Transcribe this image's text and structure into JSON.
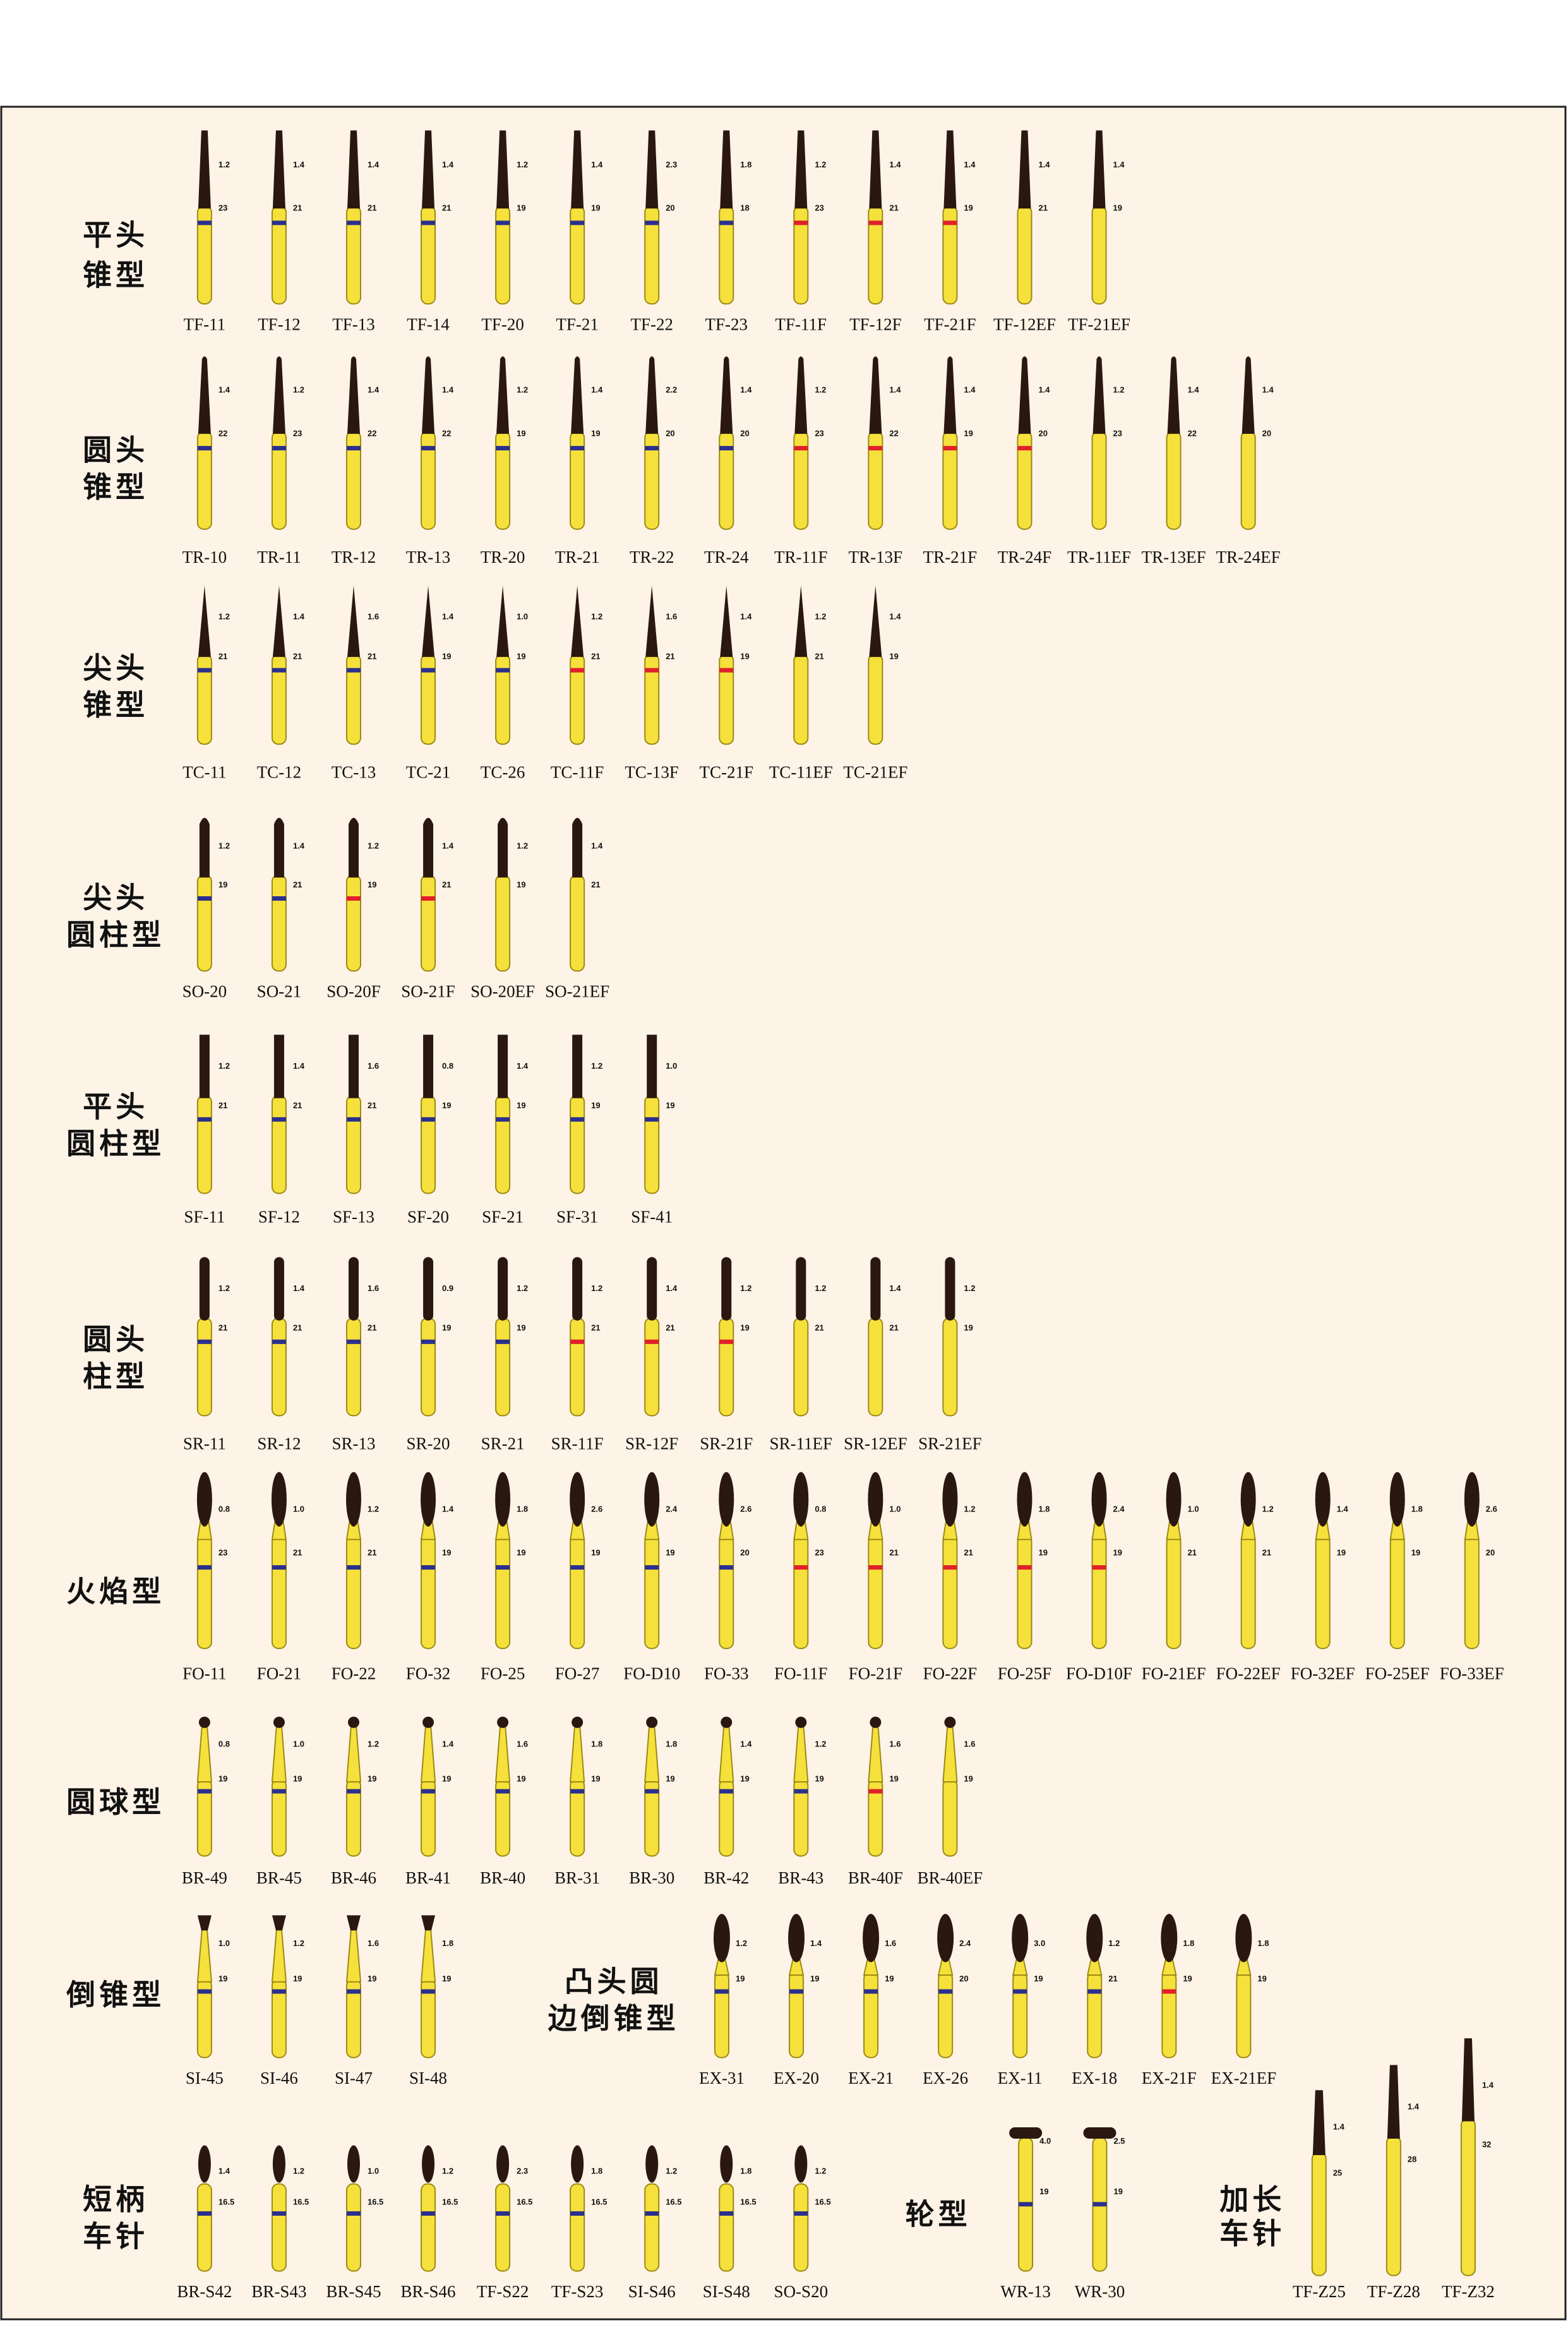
{
  "sections": [
    {
      "title": [
        "平头",
        "锥型"
      ],
      "items": [
        {
          "code": "TF-11",
          "d": "1.2",
          "l": "23",
          "band": "#2b2f8f"
        },
        {
          "code": "TF-12",
          "d": "1.4",
          "l": "21",
          "band": "#2b2f8f"
        },
        {
          "code": "TF-13",
          "d": "1.4",
          "l": "21",
          "band": "#2b2f8f"
        },
        {
          "code": "TF-14",
          "d": "1.4",
          "l": "21",
          "band": "#2b2f8f"
        },
        {
          "code": "TF-20",
          "d": "1.2",
          "l": "19",
          "band": "#2b2f8f"
        },
        {
          "code": "TF-21",
          "d": "1.4",
          "l": "19",
          "band": "#2b2f8f"
        },
        {
          "code": "TF-22",
          "d": "2.3",
          "l": "20",
          "band": "#2b2f8f"
        },
        {
          "code": "TF-23",
          "d": "1.8",
          "l": "18",
          "band": "#2b2f8f"
        },
        {
          "code": "TF-11F",
          "d": "1.2",
          "l": "23",
          "band": "#e0202a"
        },
        {
          "code": "TF-12F",
          "d": "1.4",
          "l": "21",
          "band": "#e0202a"
        },
        {
          "code": "TF-21F",
          "d": "1.4",
          "l": "19",
          "band": "#e0202a"
        },
        {
          "code": "TF-12EF",
          "d": "1.4",
          "l": "21"
        },
        {
          "code": "TF-21EF",
          "d": "1.4",
          "l": "19"
        }
      ]
    },
    {
      "title": [
        "圆头",
        "锥型"
      ],
      "items": [
        {
          "code": "TR-10",
          "d": "1.4",
          "l": "22",
          "band": "#2b2f8f"
        },
        {
          "code": "TR-11",
          "d": "1.2",
          "l": "23",
          "band": "#2b2f8f"
        },
        {
          "code": "TR-12",
          "d": "1.4",
          "l": "22",
          "band": "#2b2f8f"
        },
        {
          "code": "TR-13",
          "d": "1.4",
          "l": "22",
          "band": "#2b2f8f"
        },
        {
          "code": "TR-20",
          "d": "1.2",
          "l": "19",
          "band": "#2b2f8f"
        },
        {
          "code": "TR-21",
          "d": "1.4",
          "l": "19",
          "band": "#2b2f8f"
        },
        {
          "code": "TR-22",
          "d": "2.2",
          "l": "20",
          "band": "#2b2f8f"
        },
        {
          "code": "TR-24",
          "d": "1.4",
          "l": "20",
          "band": "#2b2f8f"
        },
        {
          "code": "TR-11F",
          "d": "1.2",
          "l": "23",
          "band": "#e0202a"
        },
        {
          "code": "TR-13F",
          "d": "1.4",
          "l": "22",
          "band": "#e0202a"
        },
        {
          "code": "TR-21F",
          "d": "1.4",
          "l": "19",
          "band": "#e0202a"
        },
        {
          "code": "TR-24F",
          "d": "1.4",
          "l": "20",
          "band": "#e0202a"
        },
        {
          "code": "TR-11EF",
          "d": "1.2",
          "l": "23"
        },
        {
          "code": "TR-13EF",
          "d": "1.4",
          "l": "22"
        },
        {
          "code": "TR-24EF",
          "d": "1.4",
          "l": "20"
        }
      ]
    },
    {
      "title": [
        "尖头",
        "锥型"
      ],
      "items": [
        {
          "code": "TC-11",
          "d": "1.2",
          "l": "21",
          "band": "#2b2f8f"
        },
        {
          "code": "TC-12",
          "d": "1.4",
          "l": "21",
          "band": "#2b2f8f"
        },
        {
          "code": "TC-13",
          "d": "1.6",
          "l": "21",
          "band": "#2b2f8f"
        },
        {
          "code": "TC-21",
          "d": "1.4",
          "l": "19",
          "band": "#2b2f8f"
        },
        {
          "code": "TC-26",
          "d": "1.0",
          "l": "19",
          "band": "#2b2f8f"
        },
        {
          "code": "TC-11F",
          "d": "1.2",
          "l": "21",
          "band": "#e0202a"
        },
        {
          "code": "TC-13F",
          "d": "1.6",
          "l": "21",
          "band": "#e0202a"
        },
        {
          "code": "TC-21F",
          "d": "1.4",
          "l": "19",
          "band": "#e0202a"
        },
        {
          "code": "TC-11EF",
          "d": "1.2",
          "l": "21"
        },
        {
          "code": "TC-21EF",
          "d": "1.4",
          "l": "19"
        }
      ]
    },
    {
      "title": [
        "尖头",
        "圆柱型"
      ],
      "items": [
        {
          "code": "SO-20",
          "d": "1.2",
          "l": "19",
          "band": "#2b2f8f"
        },
        {
          "code": "SO-21",
          "d": "1.4",
          "l": "21",
          "band": "#2b2f8f"
        },
        {
          "code": "SO-20F",
          "d": "1.2",
          "l": "19",
          "band": "#e0202a"
        },
        {
          "code": "SO-21F",
          "d": "1.4",
          "l": "21",
          "band": "#e0202a"
        },
        {
          "code": "SO-20EF",
          "d": "1.2",
          "l": "19"
        },
        {
          "code": "SO-21EF",
          "d": "1.4",
          "l": "21"
        }
      ]
    },
    {
      "title": [
        "平头",
        "圆柱型"
      ],
      "items": [
        {
          "code": "SF-11",
          "d": "1.2",
          "l": "21",
          "band": "#2b2f8f"
        },
        {
          "code": "SF-12",
          "d": "1.4",
          "l": "21",
          "band": "#2b2f8f"
        },
        {
          "code": "SF-13",
          "d": "1.6",
          "l": "21",
          "band": "#2b2f8f"
        },
        {
          "code": "SF-20",
          "d": "0.8",
          "l": "19",
          "band": "#2b2f8f"
        },
        {
          "code": "SF-21",
          "d": "1.4",
          "l": "19",
          "band": "#2b2f8f"
        },
        {
          "code": "SF-31",
          "d": "1.2",
          "l": "19",
          "band": "#2b2f8f"
        },
        {
          "code": "SF-41",
          "d": "1.0",
          "l": "19",
          "band": "#2b2f8f"
        }
      ]
    },
    {
      "title": [
        "圆头",
        "柱型"
      ],
      "items": [
        {
          "code": "SR-11",
          "d": "1.2",
          "l": "21",
          "band": "#2b2f8f"
        },
        {
          "code": "SR-12",
          "d": "1.4",
          "l": "21",
          "band": "#2b2f8f"
        },
        {
          "code": "SR-13",
          "d": "1.6",
          "l": "21",
          "band": "#2b2f8f"
        },
        {
          "code": "SR-20",
          "d": "0.9",
          "l": "19",
          "band": "#2b2f8f"
        },
        {
          "code": "SR-21",
          "d": "1.2",
          "l": "19",
          "band": "#2b2f8f"
        },
        {
          "code": "SR-11F",
          "d": "1.2",
          "l": "21",
          "band": "#e0202a"
        },
        {
          "code": "SR-12F",
          "d": "1.4",
          "l": "21",
          "band": "#e0202a"
        },
        {
          "code": "SR-21F",
          "d": "1.2",
          "l": "19",
          "band": "#e0202a"
        },
        {
          "code": "SR-11EF",
          "d": "1.2",
          "l": "21"
        },
        {
          "code": "SR-12EF",
          "d": "1.4",
          "l": "21"
        },
        {
          "code": "SR-21EF",
          "d": "1.2",
          "l": "19"
        }
      ]
    },
    {
      "title": [
        "火焰型"
      ],
      "items": [
        {
          "code": "FO-11",
          "d": "0.8",
          "l": "23",
          "band": "#2b2f8f"
        },
        {
          "code": "FO-21",
          "d": "1.0",
          "l": "21",
          "band": "#2b2f8f"
        },
        {
          "code": "FO-22",
          "d": "1.2",
          "l": "21",
          "band": "#2b2f8f"
        },
        {
          "code": "FO-32",
          "d": "1.4",
          "l": "19",
          "band": "#2b2f8f"
        },
        {
          "code": "FO-25",
          "d": "1.8",
          "l": "19",
          "band": "#2b2f8f"
        },
        {
          "code": "FO-27",
          "d": "2.6",
          "l": "19",
          "band": "#2b2f8f"
        },
        {
          "code": "FO-D10",
          "d": "2.4",
          "l": "19",
          "band": "#2b2f8f"
        },
        {
          "code": "FO-33",
          "d": "2.6",
          "l": "20",
          "band": "#2b2f8f"
        },
        {
          "code": "FO-11F",
          "d": "0.8",
          "l": "23",
          "band": "#e0202a"
        },
        {
          "code": "FO-21F",
          "d": "1.0",
          "l": "21",
          "band": "#e0202a"
        },
        {
          "code": "FO-22F",
          "d": "1.2",
          "l": "21",
          "band": "#e0202a"
        },
        {
          "code": "FO-25F",
          "d": "1.8",
          "l": "19",
          "band": "#e0202a"
        },
        {
          "code": "FO-D10F",
          "d": "2.4",
          "l": "19",
          "band": "#e0202a"
        },
        {
          "code": "FO-21EF",
          "d": "1.0",
          "l": "21"
        },
        {
          "code": "FO-22EF",
          "d": "1.2",
          "l": "21"
        },
        {
          "code": "FO-32EF",
          "d": "1.4",
          "l": "19"
        },
        {
          "code": "FO-25EF",
          "d": "1.8",
          "l": "19"
        },
        {
          "code": "FO-33EF",
          "d": "2.6",
          "l": "20"
        }
      ]
    },
    {
      "title": [
        "圆球型"
      ],
      "items": [
        {
          "code": "BR-49",
          "d": "0.8",
          "l": "19",
          "band": "#2b2f8f"
        },
        {
          "code": "BR-45",
          "d": "1.0",
          "l": "19",
          "band": "#2b2f8f"
        },
        {
          "code": "BR-46",
          "d": "1.2",
          "l": "19",
          "band": "#2b2f8f"
        },
        {
          "code": "BR-41",
          "d": "1.4",
          "l": "19",
          "band": "#2b2f8f"
        },
        {
          "code": "BR-40",
          "d": "1.6",
          "l": "19",
          "band": "#2b2f8f"
        },
        {
          "code": "BR-31",
          "d": "1.8",
          "l": "19",
          "band": "#2b2f8f"
        },
        {
          "code": "BR-30",
          "d": "1.8",
          "l": "19",
          "band": "#2b2f8f"
        },
        {
          "code": "BR-42",
          "d": "1.4",
          "l": "19",
          "band": "#2b2f8f"
        },
        {
          "code": "BR-43",
          "d": "1.2",
          "l": "19",
          "band": "#2b2f8f"
        },
        {
          "code": "BR-40F",
          "d": "1.6",
          "l": "19",
          "band": "#e0202a"
        },
        {
          "code": "BR-40EF",
          "d": "1.6",
          "l": "19"
        }
      ]
    },
    {
      "title": [
        "倒锥型"
      ],
      "items": [
        {
          "code": "SI-45",
          "d": "1.0",
          "l": "19",
          "band": "#2b2f8f"
        },
        {
          "code": "SI-46",
          "d": "1.2",
          "l": "19",
          "band": "#2b2f8f"
        },
        {
          "code": "SI-47",
          "d": "1.6",
          "l": "19",
          "band": "#2b2f8f"
        },
        {
          "code": "SI-48",
          "d": "1.8",
          "l": "19",
          "band": "#2b2f8f"
        }
      ]
    },
    {
      "title": [
        "凸头圆",
        "边倒锥型"
      ],
      "items": [
        {
          "code": "EX-31",
          "d": "1.2",
          "l": "19",
          "band": "#2b2f8f"
        },
        {
          "code": "EX-20",
          "d": "1.4",
          "l": "19",
          "band": "#2b2f8f"
        },
        {
          "code": "EX-21",
          "d": "1.6",
          "l": "19",
          "band": "#2b2f8f"
        },
        {
          "code": "EX-26",
          "d": "2.4",
          "l": "20",
          "band": "#2b2f8f"
        },
        {
          "code": "EX-11",
          "d": "3.0",
          "l": "19",
          "band": "#2b2f8f"
        },
        {
          "code": "EX-18",
          "d": "1.2",
          "l": "21",
          "band": "#2b2f8f"
        },
        {
          "code": "EX-21F",
          "d": "1.8",
          "l": "19",
          "band": "#e0202a"
        },
        {
          "code": "EX-21EF",
          "d": "1.8",
          "l": "19"
        }
      ]
    },
    {
      "title": [
        "短柄",
        "车针"
      ],
      "items": [
        {
          "code": "BR-S42",
          "d": "1.4",
          "l": "16.5",
          "band": "#2b2f8f"
        },
        {
          "code": "BR-S43",
          "d": "1.2",
          "l": "16.5",
          "band": "#2b2f8f"
        },
        {
          "code": "BR-S45",
          "d": "1.0",
          "l": "16.5",
          "band": "#2b2f8f"
        },
        {
          "code": "BR-S46",
          "d": "1.2",
          "l": "16.5",
          "band": "#2b2f8f"
        },
        {
          "code": "TF-S22",
          "d": "2.3",
          "l": "16.5",
          "band": "#2b2f8f"
        },
        {
          "code": "TF-S23",
          "d": "1.8",
          "l": "16.5",
          "band": "#2b2f8f"
        },
        {
          "code": "SI-S46",
          "d": "1.2",
          "l": "16.5",
          "band": "#2b2f8f"
        },
        {
          "code": "SI-S48",
          "d": "1.8",
          "l": "16.5",
          "band": "#2b2f8f"
        },
        {
          "code": "SO-S20",
          "d": "1.2",
          "l": "16.5",
          "band": "#2b2f8f"
        }
      ]
    },
    {
      "title": [
        "轮型"
      ],
      "items": [
        {
          "code": "WR-13",
          "d": "4.0",
          "l": "19",
          "band": "#2b2f8f"
        },
        {
          "code": "WR-30",
          "d": "2.5",
          "l": "19",
          "band": "#2b2f8f"
        }
      ]
    },
    {
      "title": [
        "加长",
        "车针"
      ],
      "items": [
        {
          "code": "TF-Z25",
          "d": "1.4",
          "l": "25"
        },
        {
          "code": "TF-Z28",
          "d": "1.4",
          "l": "28"
        },
        {
          "code": "TF-Z32",
          "d": "1.4",
          "l": "32"
        }
      ]
    }
  ]
}
